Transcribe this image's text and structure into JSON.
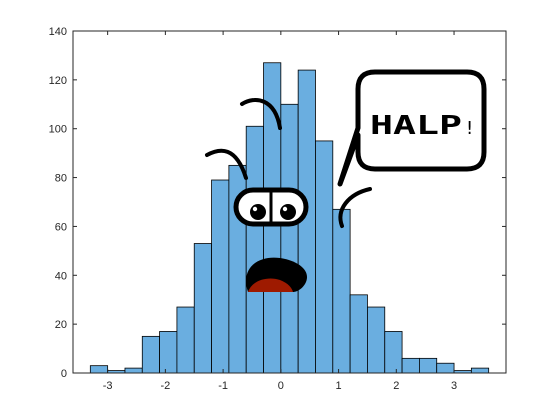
{
  "chart_data": {
    "type": "bar",
    "subtype": "histogram",
    "bin_edges": [
      -3.3,
      -3.0,
      -2.7,
      -2.4,
      -2.1,
      -1.8,
      -1.5,
      -1.2,
      -0.9,
      -0.6,
      -0.3,
      0.0,
      0.3,
      0.6,
      0.9,
      1.2,
      1.5,
      1.8,
      2.1,
      2.4,
      2.7,
      3.0,
      3.3,
      3.6
    ],
    "values": [
      3,
      1,
      2,
      15,
      17,
      27,
      53,
      79,
      85,
      101,
      127,
      110,
      124,
      95,
      67,
      32,
      27,
      17,
      6,
      6,
      4,
      1,
      2
    ],
    "xlim": [
      -3.6,
      3.9
    ],
    "ylim": [
      0,
      140
    ],
    "xticks": [
      -3,
      -2,
      -1,
      0,
      1,
      2,
      3
    ],
    "yticks": [
      0,
      20,
      40,
      60,
      80,
      100,
      120,
      140
    ],
    "xtick_labels": [
      "-3",
      "-2",
      "-1",
      "0",
      "1",
      "2",
      "3"
    ],
    "ytick_labels": [
      "0",
      "20",
      "40",
      "60",
      "80",
      "100",
      "120",
      "140"
    ],
    "grid": false,
    "bar_color": "#6aaee0",
    "edge_color": "#000000",
    "annotation": {
      "speech_bubble": "HALP",
      "exclamation": "!"
    }
  }
}
